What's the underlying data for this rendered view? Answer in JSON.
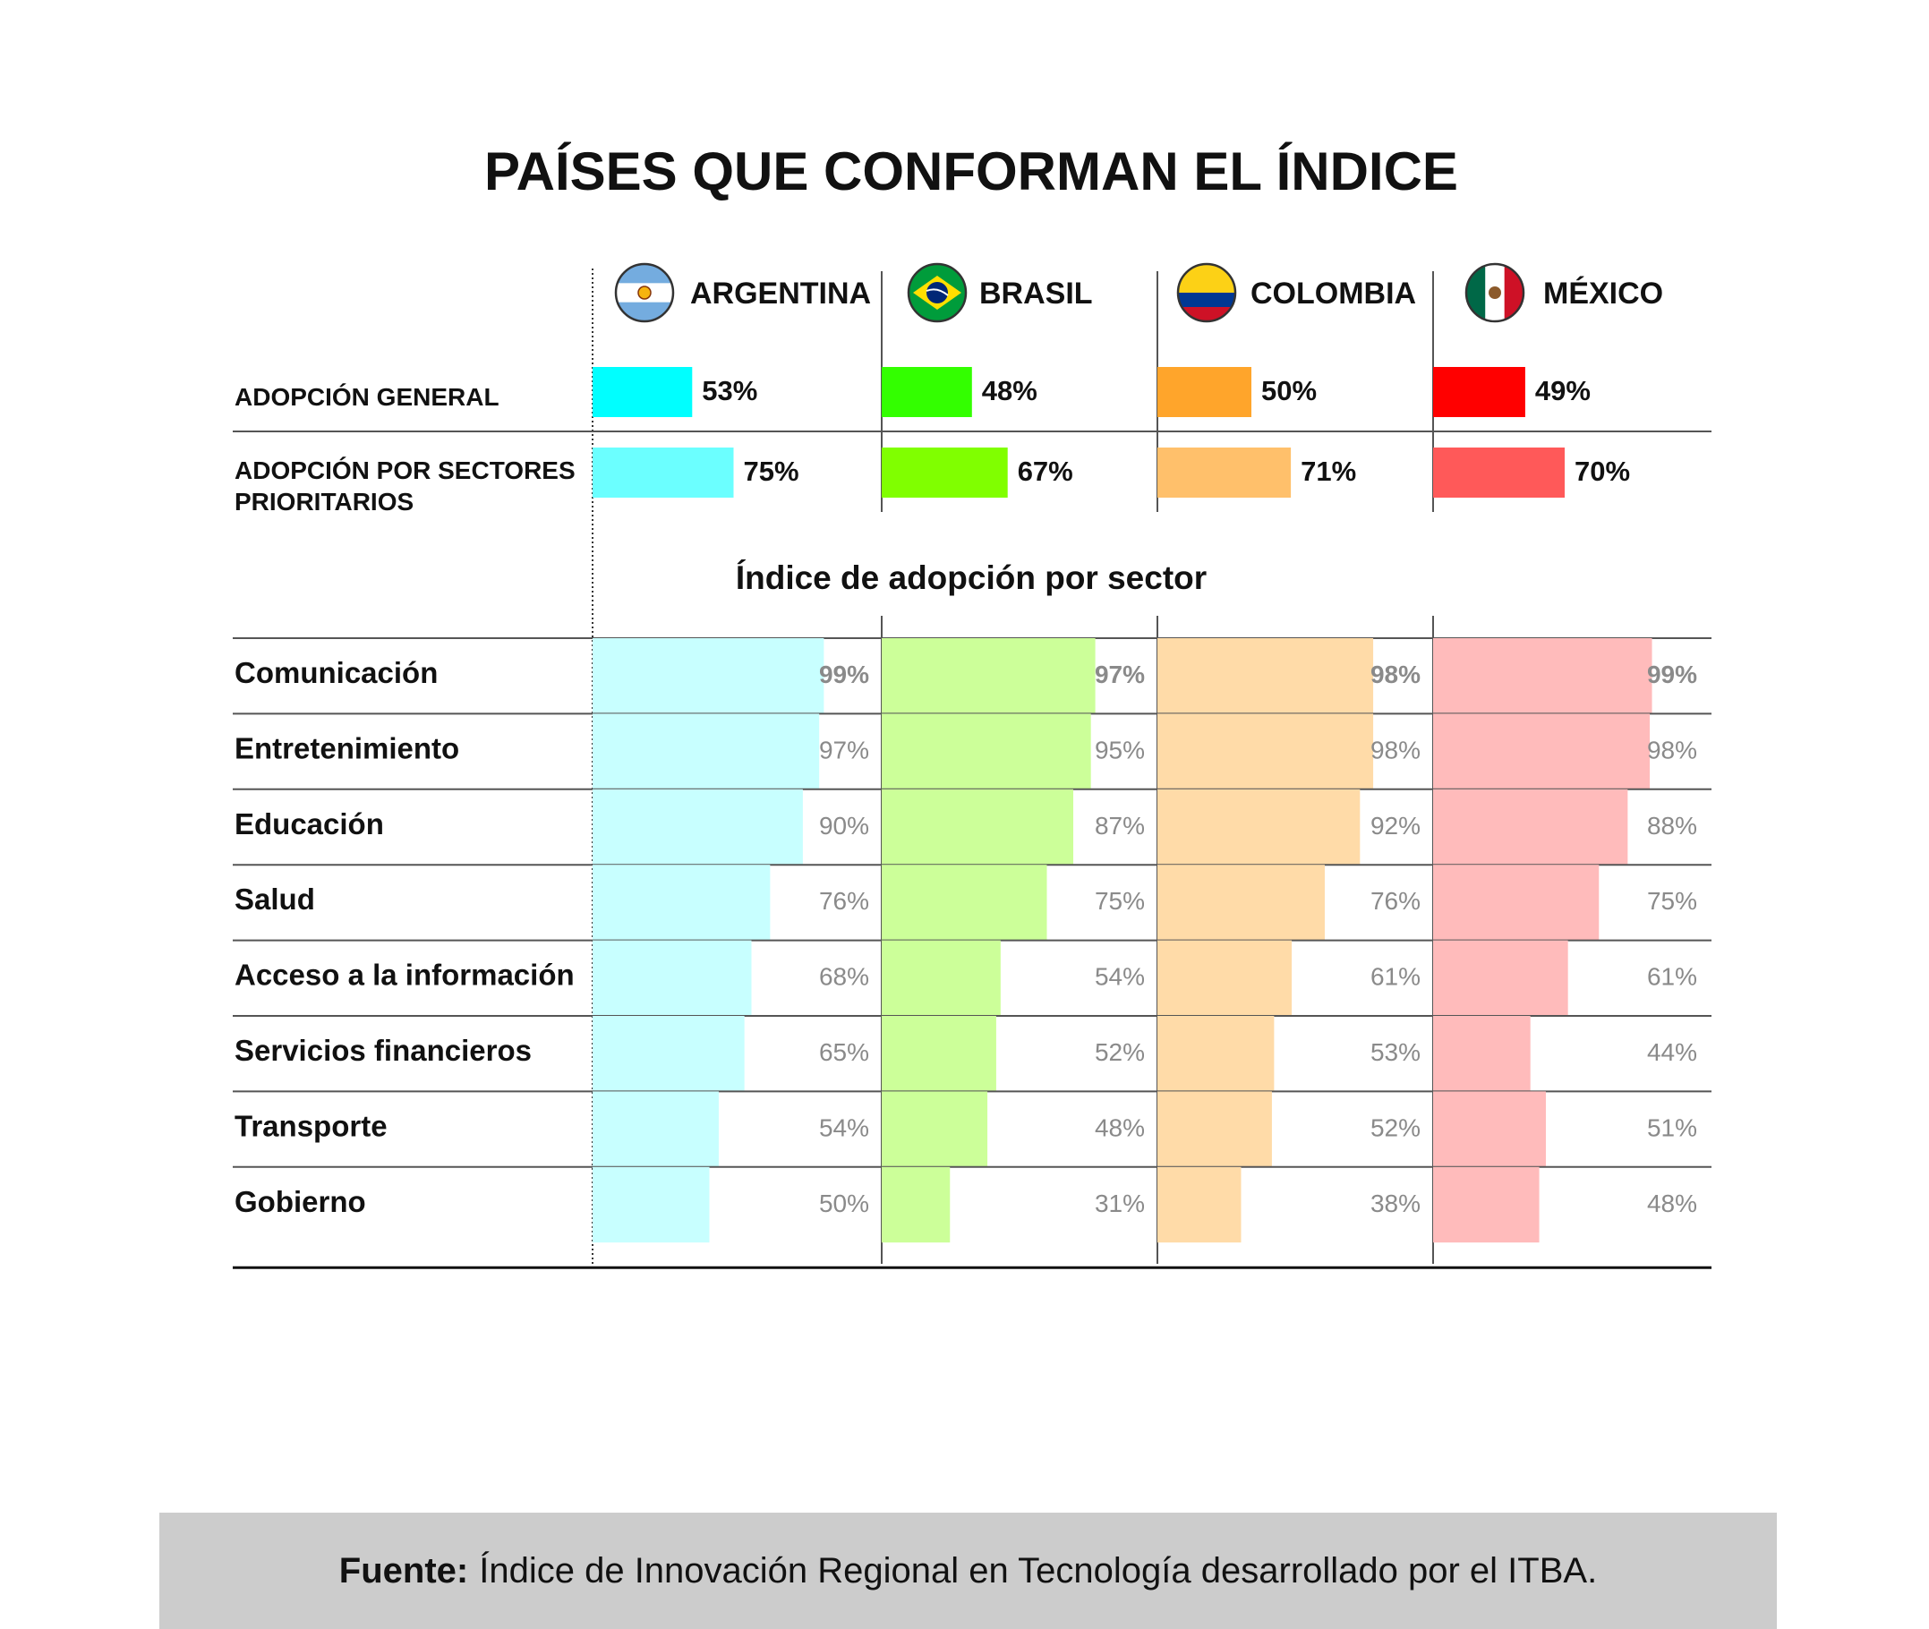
{
  "colors": {
    "background": "#ffffff",
    "grid_line": "#555555",
    "footer_bg": "#cccccc"
  },
  "chart_data": {
    "type": "bar",
    "title": "PAÍSES QUE CONFORMAN EL ÍNDICE",
    "countries": [
      {
        "name": "ARGENTINA",
        "flag": "argentina-flag-icon",
        "strong": "#00ffff",
        "medium": "#6bffff",
        "light": "#c8ffff"
      },
      {
        "name": "BRASIL",
        "flag": "brazil-flag-icon",
        "strong": "#33ff00",
        "medium": "#80ff00",
        "light": "#ccff99"
      },
      {
        "name": "COLOMBIA",
        "flag": "colombia-flag-icon",
        "strong": "#ffa52b",
        "medium": "#ffc06b",
        "light": "#ffdba8"
      },
      {
        "name": "MÉXICO",
        "flag": "mexico-flag-icon",
        "strong": "#ff0000",
        "medium": "#ff5959",
        "light": "#ffbbbb"
      }
    ],
    "summary_rows": [
      {
        "label": [
          "ADOPCIÓN GENERAL"
        ],
        "values": [
          53,
          48,
          50,
          49
        ]
      },
      {
        "label": [
          "ADOPCIÓN POR SECTORES",
          "PRIORITARIOS"
        ],
        "values": [
          75,
          67,
          71,
          70
        ]
      }
    ],
    "sector_title": "Índice de adopción por sector",
    "sectors": [
      {
        "name": "Comunicación",
        "values": [
          99,
          97,
          98,
          99
        ]
      },
      {
        "name": "Entretenimiento",
        "values": [
          97,
          95,
          98,
          98
        ]
      },
      {
        "name": "Educación",
        "values": [
          90,
          87,
          92,
          88
        ]
      },
      {
        "name": "Salud",
        "values": [
          76,
          75,
          76,
          75
        ]
      },
      {
        "name": "Acceso a la información",
        "values": [
          68,
          54,
          61,
          61
        ]
      },
      {
        "name": "Servicios financieros",
        "values": [
          65,
          52,
          53,
          44
        ]
      },
      {
        "name": "Transporte",
        "values": [
          54,
          48,
          52,
          51
        ]
      },
      {
        "name": "Gobierno",
        "values": [
          50,
          31,
          38,
          48
        ]
      }
    ],
    "value_suffix": "%",
    "xlim": [
      0,
      100
    ]
  },
  "footer": {
    "label": "Fuente:",
    "text": "Índice de Innovación Regional en Tecnología desarrollado por el ITBA."
  }
}
